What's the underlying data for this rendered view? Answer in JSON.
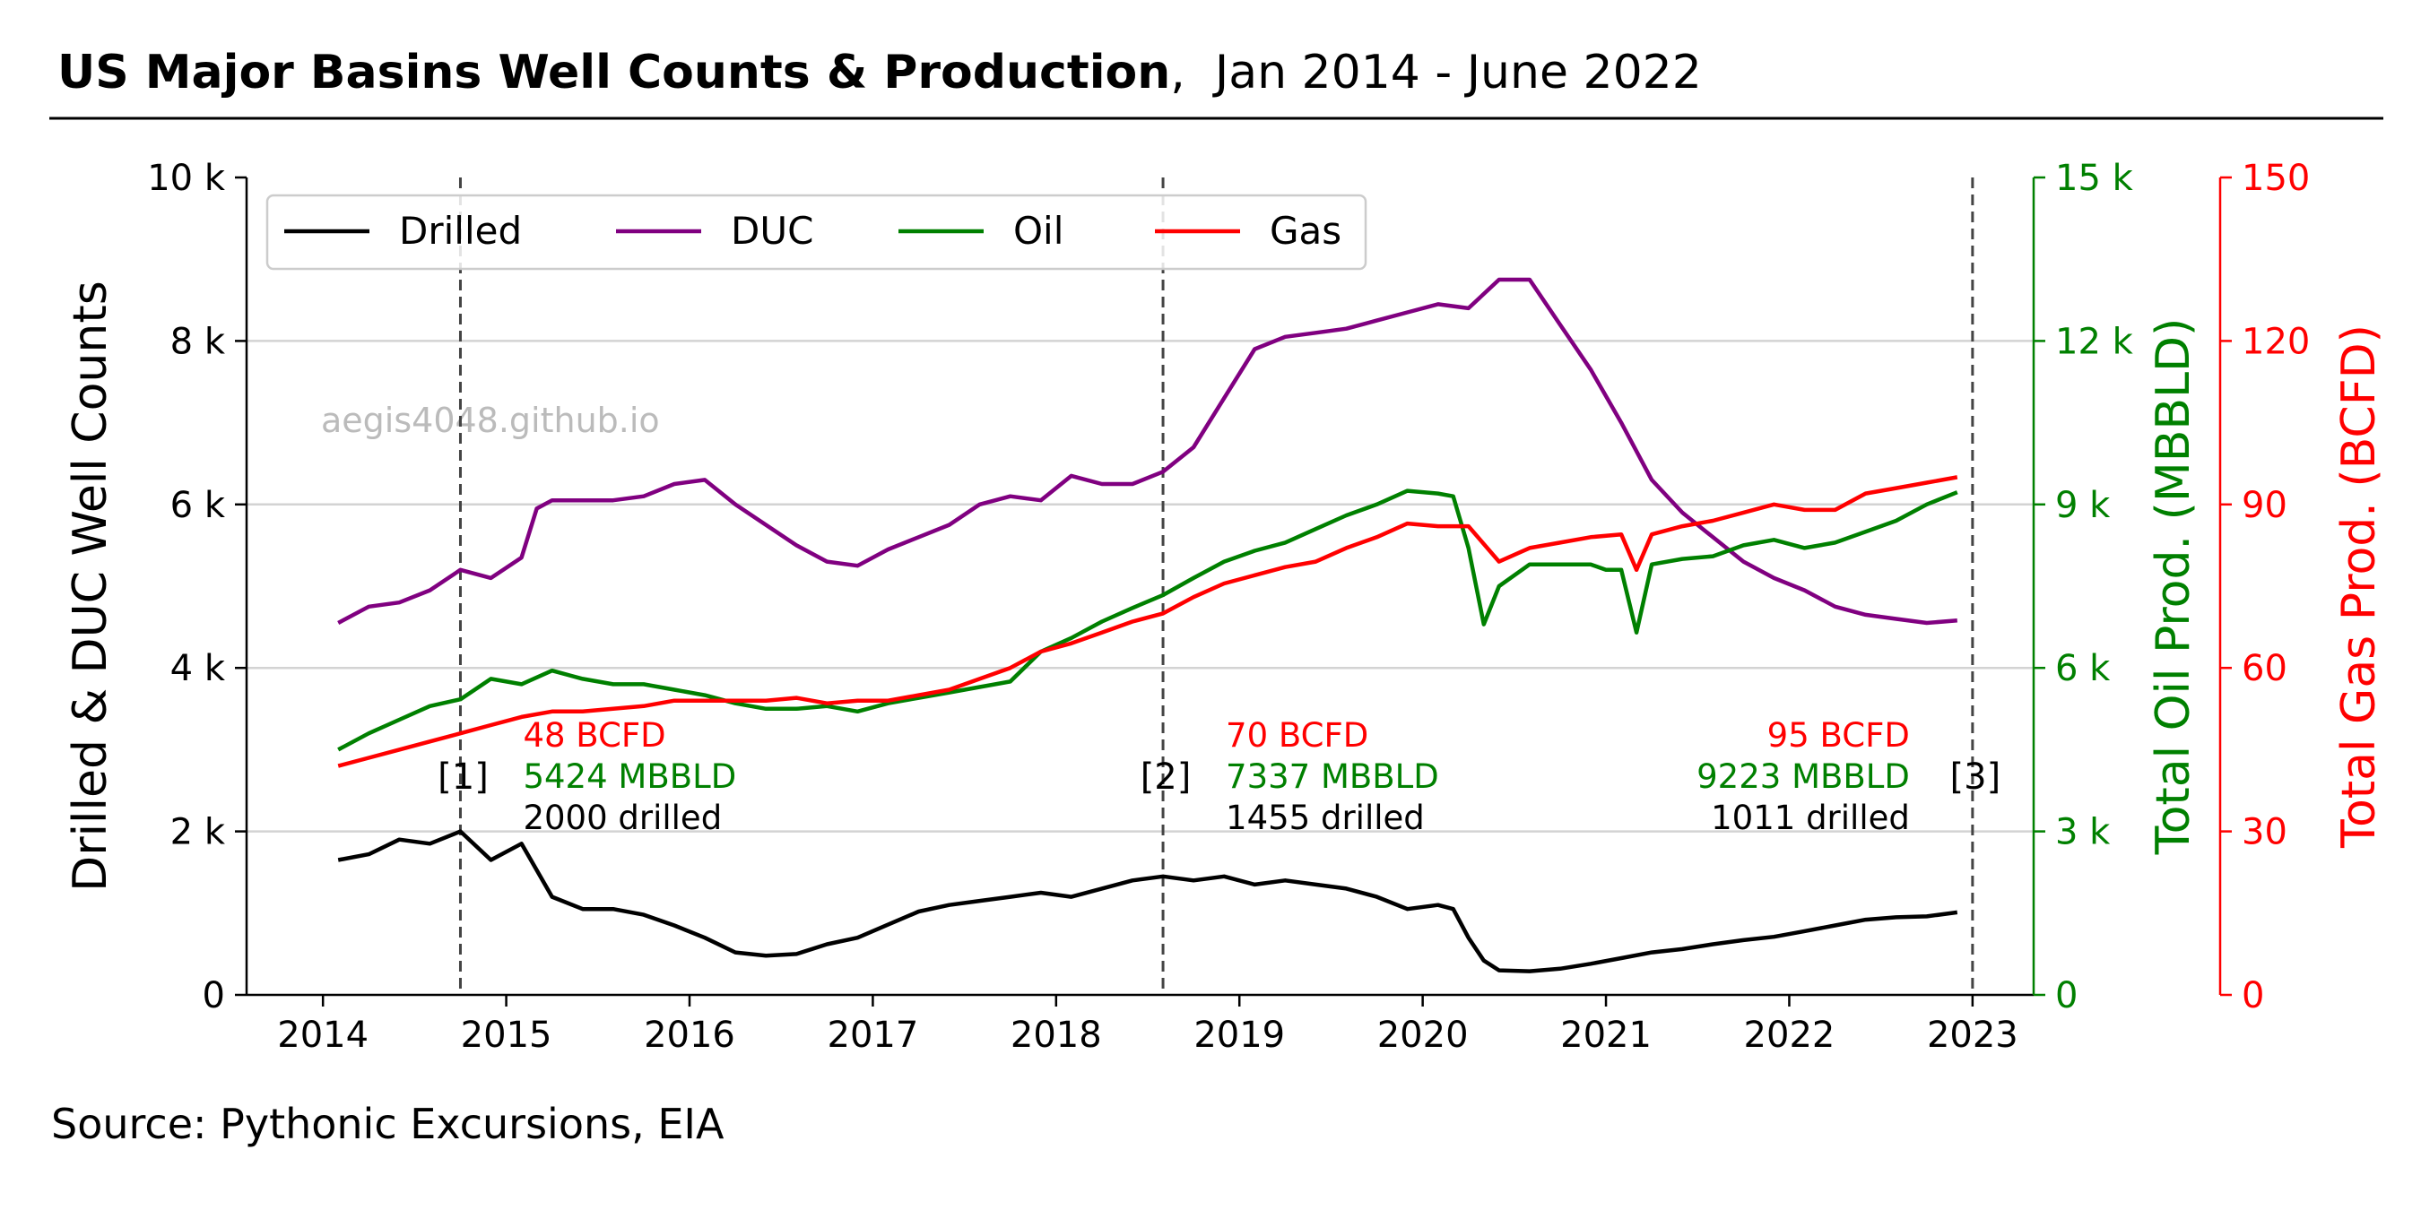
{
  "header": {
    "title_bold": "US Major Basins Well Counts & Production",
    "title_rest": ",  Jan 2014 - June 2022"
  },
  "source": "Source: Pythonic Excursions, EIA",
  "watermark": "aegis4048.github.io",
  "chart_data": {
    "type": "line",
    "x_axis": {
      "type": "date",
      "range": [
        "2013-08",
        "2023-05"
      ],
      "ticks": [
        "2014",
        "2015",
        "2016",
        "2017",
        "2018",
        "2019",
        "2020",
        "2021",
        "2022",
        "2023"
      ]
    },
    "y_axes": {
      "left": {
        "label": "Drilled & DUC Well Counts",
        "range": [
          0,
          10000
        ],
        "ticks": [
          0,
          2000,
          4000,
          6000,
          8000,
          10000
        ],
        "tick_labels": [
          "0",
          "2 k",
          "4 k",
          "6 k",
          "8 k",
          "10 k"
        ],
        "color": "#000000"
      },
      "oil": {
        "label": "Total Oil Prod. (MBBLD)",
        "range": [
          0,
          15000
        ],
        "ticks": [
          0,
          3000,
          6000,
          9000,
          12000,
          15000
        ],
        "tick_labels": [
          "0",
          "3 k",
          "6 k",
          "9 k",
          "12 k",
          "15 k"
        ],
        "color": "#008000"
      },
      "gas": {
        "label": "Total Gas Prod. (BCFD)",
        "range": [
          0,
          150
        ],
        "ticks": [
          0,
          30,
          60,
          90,
          120,
          150
        ],
        "tick_labels": [
          "0",
          "30",
          "60",
          "90",
          "120",
          "150"
        ],
        "color": "#ff0000"
      }
    },
    "grid": "horizontal",
    "legend": {
      "placement": "top-left",
      "columns": 4
    },
    "series": [
      {
        "name": "Drilled",
        "axis": "left",
        "color": "#000000",
        "x": [
          "2014-02",
          "2014-04",
          "2014-06",
          "2014-08",
          "2014-10",
          "2014-12",
          "2015-02",
          "2015-04",
          "2015-06",
          "2015-08",
          "2015-10",
          "2015-12",
          "2016-02",
          "2016-04",
          "2016-06",
          "2016-08",
          "2016-10",
          "2016-12",
          "2017-02",
          "2017-04",
          "2017-06",
          "2017-08",
          "2017-10",
          "2017-12",
          "2018-02",
          "2018-04",
          "2018-06",
          "2018-08",
          "2018-10",
          "2018-12",
          "2019-02",
          "2019-04",
          "2019-06",
          "2019-08",
          "2019-10",
          "2019-12",
          "2020-02",
          "2020-03",
          "2020-04",
          "2020-05",
          "2020-06",
          "2020-08",
          "2020-10",
          "2020-12",
          "2021-02",
          "2021-04",
          "2021-06",
          "2021-08",
          "2021-10",
          "2021-12",
          "2022-02",
          "2022-04",
          "2022-06",
          "2022-08",
          "2022-10",
          "2022-12"
        ],
        "y": [
          1650,
          1720,
          1900,
          1850,
          2000,
          1650,
          1850,
          1200,
          1050,
          1050,
          980,
          850,
          700,
          520,
          480,
          500,
          620,
          700,
          860,
          1020,
          1100,
          1150,
          1200,
          1250,
          1200,
          1300,
          1400,
          1450,
          1400,
          1450,
          1350,
          1400,
          1350,
          1300,
          1200,
          1050,
          1100,
          1050,
          700,
          420,
          300,
          290,
          320,
          380,
          450,
          520,
          560,
          620,
          670,
          710,
          780,
          850,
          920,
          950,
          960,
          1010
        ]
      },
      {
        "name": "DUC",
        "axis": "left",
        "color": "#800080",
        "x": [
          "2014-02",
          "2014-04",
          "2014-06",
          "2014-08",
          "2014-10",
          "2014-12",
          "2015-02",
          "2015-03",
          "2015-04",
          "2015-06",
          "2015-08",
          "2015-10",
          "2015-12",
          "2016-02",
          "2016-04",
          "2016-06",
          "2016-08",
          "2016-10",
          "2016-12",
          "2017-02",
          "2017-04",
          "2017-06",
          "2017-08",
          "2017-10",
          "2017-12",
          "2018-02",
          "2018-04",
          "2018-06",
          "2018-08",
          "2018-10",
          "2018-12",
          "2019-02",
          "2019-04",
          "2019-06",
          "2019-08",
          "2019-10",
          "2019-12",
          "2020-02",
          "2020-04",
          "2020-06",
          "2020-08",
          "2020-10",
          "2020-12",
          "2021-02",
          "2021-04",
          "2021-06",
          "2021-08",
          "2021-10",
          "2021-12",
          "2022-02",
          "2022-04",
          "2022-06",
          "2022-08",
          "2022-10",
          "2022-12"
        ],
        "y": [
          4550,
          4750,
          4800,
          4950,
          5200,
          5100,
          5350,
          5950,
          6050,
          6050,
          6050,
          6100,
          6250,
          6300,
          6000,
          5750,
          5500,
          5300,
          5250,
          5450,
          5600,
          5750,
          6000,
          6100,
          6050,
          6350,
          6250,
          6250,
          6400,
          6700,
          7300,
          7900,
          8050,
          8100,
          8150,
          8250,
          8350,
          8450,
          8400,
          8750,
          8750,
          8200,
          7650,
          7000,
          6300,
          5900,
          5600,
          5300,
          5100,
          4950,
          4750,
          4650,
          4600,
          4550,
          4580
        ]
      },
      {
        "name": "Oil",
        "axis": "oil",
        "color": "#008000",
        "x": [
          "2014-02",
          "2014-04",
          "2014-06",
          "2014-08",
          "2014-10",
          "2014-12",
          "2015-02",
          "2015-04",
          "2015-06",
          "2015-08",
          "2015-10",
          "2015-12",
          "2016-02",
          "2016-04",
          "2016-06",
          "2016-08",
          "2016-10",
          "2016-12",
          "2017-02",
          "2017-04",
          "2017-06",
          "2017-08",
          "2017-10",
          "2017-12",
          "2018-02",
          "2018-04",
          "2018-06",
          "2018-08",
          "2018-10",
          "2018-12",
          "2019-02",
          "2019-04",
          "2019-06",
          "2019-08",
          "2019-10",
          "2019-12",
          "2020-02",
          "2020-03",
          "2020-04",
          "2020-05",
          "2020-06",
          "2020-08",
          "2020-10",
          "2020-12",
          "2021-01",
          "2021-02",
          "2021-03",
          "2021-04",
          "2021-06",
          "2021-08",
          "2021-10",
          "2021-12",
          "2022-02",
          "2022-04",
          "2022-06",
          "2022-08",
          "2022-10",
          "2022-12"
        ],
        "y": [
          4500,
          4800,
          5050,
          5300,
          5424,
          5800,
          5700,
          5950,
          5800,
          5700,
          5700,
          5600,
          5500,
          5350,
          5250,
          5250,
          5300,
          5200,
          5350,
          5450,
          5550,
          5650,
          5750,
          6300,
          6550,
          6850,
          7100,
          7337,
          7650,
          7950,
          8150,
          8300,
          8550,
          8800,
          9000,
          9250,
          9200,
          9150,
          8200,
          6800,
          7500,
          7900,
          7900,
          7900,
          7800,
          7800,
          6650,
          7900,
          8000,
          8050,
          8250,
          8350,
          8200,
          8300,
          8500,
          8700,
          9000,
          9223
        ]
      },
      {
        "name": "Gas",
        "axis": "gas",
        "color": "#ff0000",
        "x": [
          "2014-02",
          "2014-04",
          "2014-06",
          "2014-08",
          "2014-10",
          "2014-12",
          "2015-02",
          "2015-04",
          "2015-06",
          "2015-08",
          "2015-10",
          "2015-12",
          "2016-02",
          "2016-04",
          "2016-06",
          "2016-08",
          "2016-10",
          "2016-12",
          "2017-02",
          "2017-04",
          "2017-06",
          "2017-08",
          "2017-10",
          "2017-12",
          "2018-02",
          "2018-04",
          "2018-06",
          "2018-08",
          "2018-10",
          "2018-12",
          "2019-02",
          "2019-04",
          "2019-06",
          "2019-08",
          "2019-10",
          "2019-12",
          "2020-02",
          "2020-04",
          "2020-06",
          "2020-08",
          "2020-10",
          "2020-12",
          "2021-02",
          "2021-03",
          "2021-04",
          "2021-06",
          "2021-08",
          "2021-10",
          "2021-12",
          "2022-02",
          "2022-04",
          "2022-06",
          "2022-08",
          "2022-10",
          "2022-12"
        ],
        "y": [
          42,
          43.5,
          45,
          46.5,
          48,
          49.5,
          51,
          52,
          52,
          52.5,
          53,
          54,
          54,
          54,
          54,
          54.5,
          53.5,
          54,
          54,
          55,
          56,
          58,
          60,
          63,
          64.5,
          66.5,
          68.5,
          70,
          73,
          75.5,
          77,
          78.5,
          79.5,
          82,
          84,
          86.5,
          86,
          86,
          79.5,
          82,
          83,
          84,
          84.5,
          78,
          84.5,
          86,
          87,
          88.5,
          90,
          89,
          89,
          92,
          93,
          94,
          95
        ]
      }
    ],
    "annotations": [
      {
        "marker_x": "2014-10",
        "label": "[1]",
        "lines": [
          "48 BCFD",
          "5424 MBBLD",
          "2000 drilled"
        ],
        "align": "left"
      },
      {
        "marker_x": "2018-08",
        "label": "[2]",
        "lines": [
          "70 BCFD",
          "7337 MBBLD",
          "1455 drilled"
        ],
        "align": "left"
      },
      {
        "marker_x": "2023-01",
        "label": "[3]",
        "lines": [
          "95 BCFD",
          "9223 MBBLD",
          "1011 drilled"
        ],
        "align": "right"
      }
    ]
  }
}
